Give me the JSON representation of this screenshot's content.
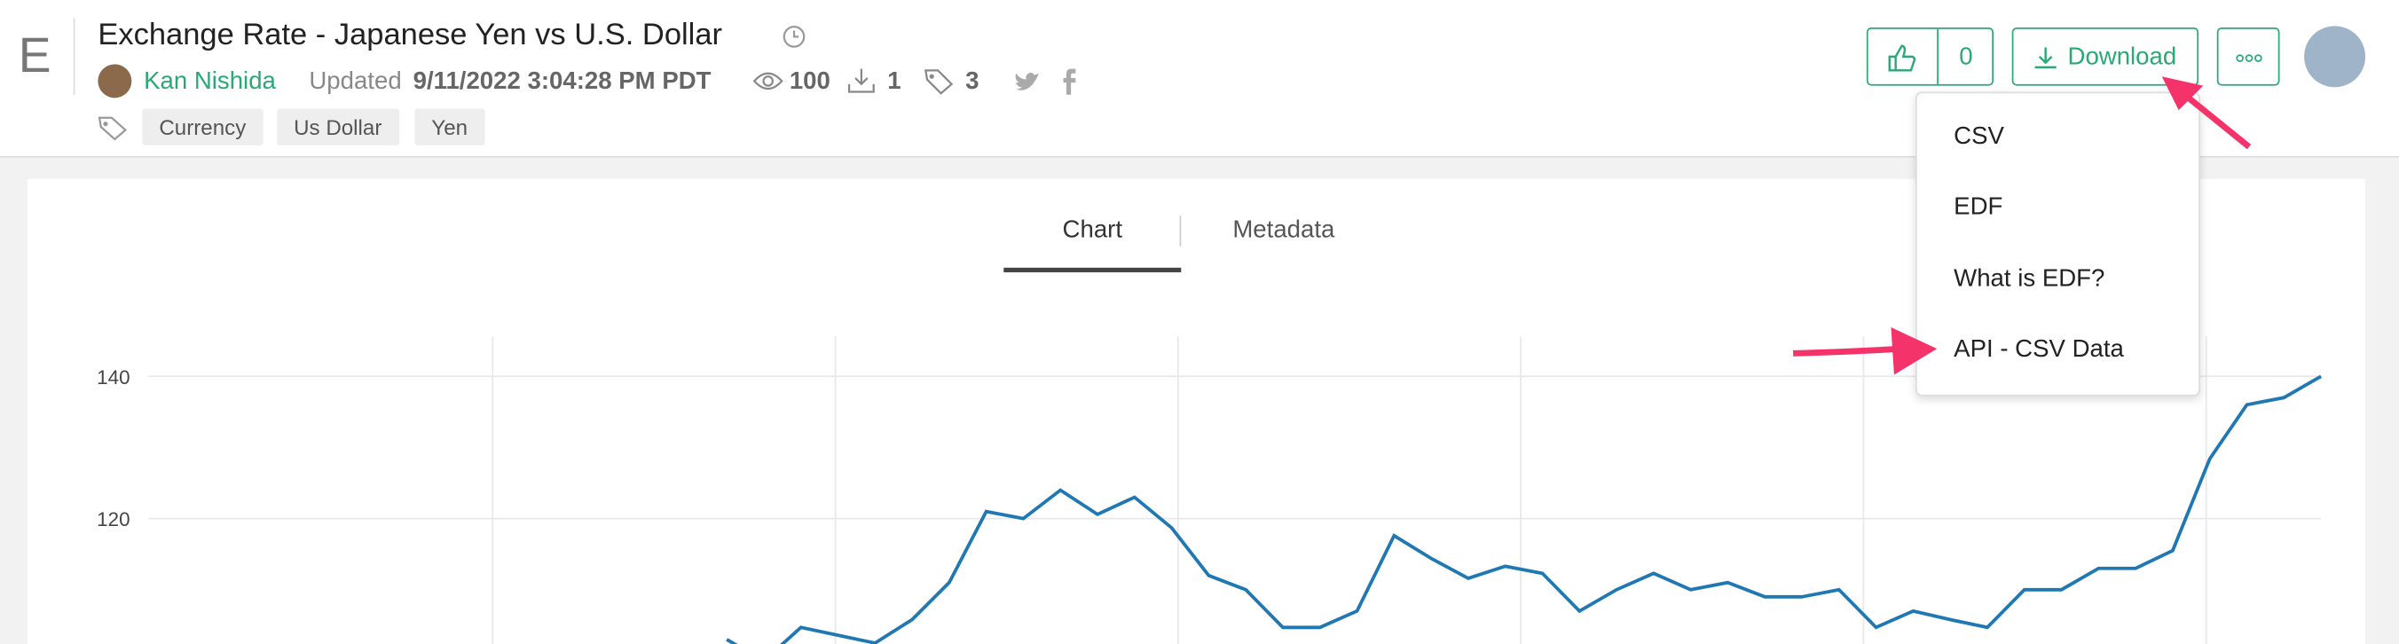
{
  "logo": "E",
  "header": {
    "title": "Exchange Rate - Japanese Yen vs U.S. Dollar",
    "author": "Kan Nishida",
    "updated_label": "Updated",
    "updated": "9/11/2022 3:04:28 PM PDT",
    "views": 100,
    "downloads": 1,
    "tag_count": 3,
    "tags": [
      "Currency",
      "Us Dollar",
      "Yen"
    ]
  },
  "actions": {
    "likes": 0,
    "download": "Download"
  },
  "menu": [
    "CSV",
    "EDF",
    "What is EDF?",
    "API - CSV Data"
  ],
  "tabs": [
    "Chart",
    "Metadata"
  ],
  "chart_data": {
    "type": "line",
    "ylim": [
      100,
      145
    ],
    "yticks": [
      120,
      140
    ],
    "grid": true,
    "series": [
      {
        "color": "#1f77b4",
        "values": [
          103,
          100,
          104.7,
          103.6,
          102.5,
          105.8,
          111,
          121,
          120,
          124,
          120.6,
          123,
          118.7,
          112,
          110,
          104.7,
          104.7,
          107,
          117.6,
          114.4,
          111.6,
          113.3,
          112.3,
          107,
          110,
          112.3,
          110,
          111,
          109,
          109,
          110,
          104.7,
          107,
          105.8,
          104.7,
          110,
          110,
          113,
          113,
          115.5,
          128.4,
          136,
          137,
          140
        ]
      }
    ]
  }
}
